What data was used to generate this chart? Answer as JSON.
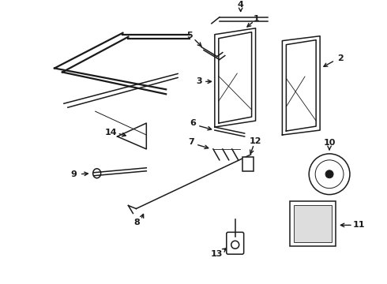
{
  "bg_color": "#ffffff",
  "line_color": "#1a1a1a",
  "figsize": [
    4.9,
    3.6
  ],
  "dpi": 100,
  "label_fontsize": 8,
  "label_fontweight": "bold"
}
